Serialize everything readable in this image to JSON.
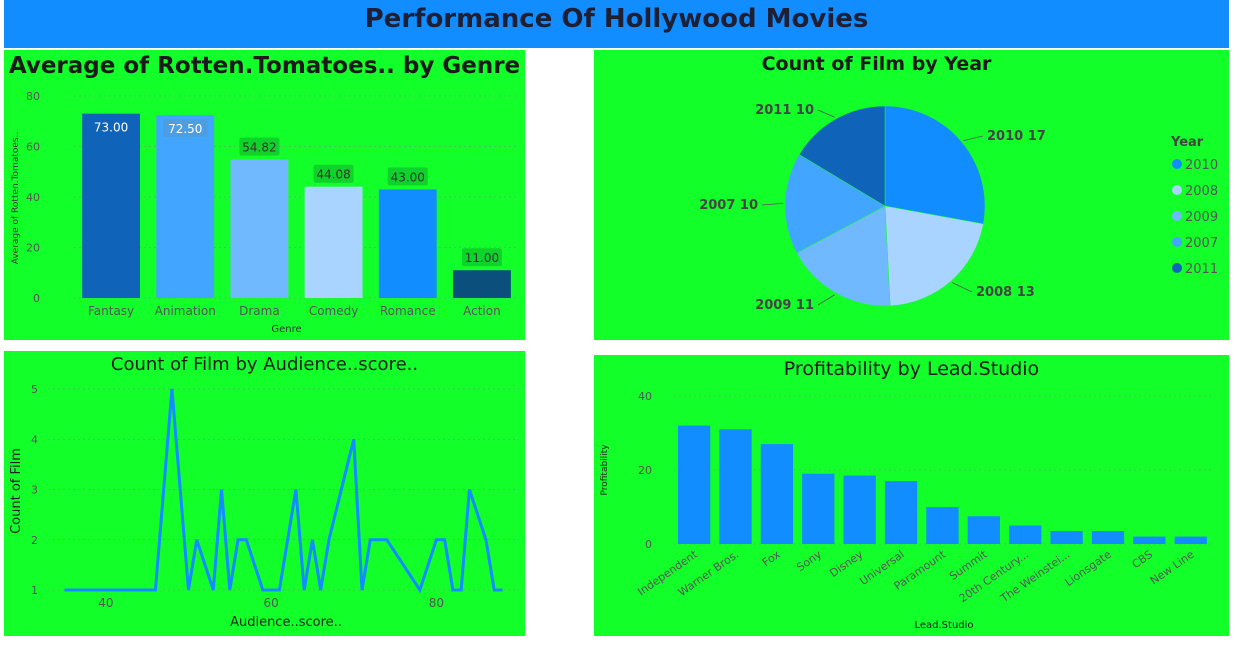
{
  "header": {
    "title": "Performance Of Hollywood Movies"
  },
  "colors": {
    "panel_bg": "#12ff2a",
    "header_bg": "#118dff",
    "bar_default": "#118dff",
    "genre_bars": [
      "#0f63b8",
      "#42a5ff",
      "#70b9ff",
      "#a8d4ff",
      "#118dff",
      "#0b4f7c"
    ],
    "pie_slices": {
      "2010": "#118dff",
      "2008": "#a8d4ff",
      "2009": "#70b9ff",
      "2007": "#42a5ff",
      "2011": "#0f63b8"
    },
    "line": "#118dff"
  },
  "chart_data": [
    {
      "type": "bar",
      "title": "Average of Rotten.Tomatoes.. by Genre",
      "xlabel": "Genre",
      "ylabel": "Average of Rotten.Tomatoes..",
      "categories": [
        "Fantasy",
        "Animation",
        "Drama",
        "Comedy",
        "Romance",
        "Action"
      ],
      "values": [
        73.0,
        72.5,
        54.82,
        44.08,
        43.0,
        11.0
      ],
      "data_labels": [
        "73.00",
        "72.50",
        "54.82",
        "44.08",
        "43.00",
        "11.00"
      ],
      "ylim": [
        0,
        80
      ],
      "yticks": [
        0,
        20,
        40,
        60,
        80
      ],
      "grid": true
    },
    {
      "type": "pie",
      "title": "Count of Film by Year",
      "legend_title": "Year",
      "legend_position": "right",
      "legend": [
        "2010",
        "2008",
        "2009",
        "2007",
        "2011"
      ],
      "slices": [
        {
          "label": "2010",
          "value": 17,
          "text": "2010 17"
        },
        {
          "label": "2008",
          "value": 13,
          "text": "2008 13"
        },
        {
          "label": "2009",
          "value": 11,
          "text": "2009 11"
        },
        {
          "label": "2007",
          "value": 10,
          "text": "2007 10"
        },
        {
          "label": "2011",
          "value": 10,
          "text": "2011 10"
        }
      ]
    },
    {
      "type": "line",
      "title": "Count of Film by Audience..score..",
      "xlabel": "Audience..score..",
      "ylabel": "Count of Film",
      "x": [
        35,
        44,
        46,
        48,
        50,
        51,
        53,
        54,
        55,
        56,
        57,
        59,
        61,
        62,
        63,
        64,
        65,
        66,
        67,
        70,
        71,
        72,
        74,
        78,
        80,
        81,
        82,
        83,
        84,
        86,
        87,
        88
      ],
      "y": [
        1,
        1,
        1,
        5,
        1,
        2,
        1,
        3,
        1,
        2,
        2,
        1,
        1,
        2,
        3,
        1,
        2,
        1,
        2,
        4,
        1,
        2,
        2,
        1,
        2,
        2,
        1,
        1,
        3,
        2,
        1,
        1
      ],
      "xticks": [
        40,
        60,
        80
      ],
      "yticks": [
        1,
        2,
        3,
        4,
        5
      ],
      "xlim": [
        33,
        90
      ],
      "ylim": [
        1,
        5
      ],
      "grid": true
    },
    {
      "type": "bar",
      "title": "Profitability by Lead.Studio",
      "xlabel": "Lead.Studio",
      "ylabel": "Profitability",
      "categories": [
        "Independent",
        "Warner Bros.",
        "Fox",
        "Sony",
        "Disney",
        "Universal",
        "Paramount",
        "Summit",
        "20th Century...",
        "The Weinstei...",
        "Lionsgate",
        "CBS",
        "New Line"
      ],
      "values": [
        32,
        31,
        27,
        19,
        18.5,
        17,
        10,
        7.5,
        5,
        3.5,
        3.5,
        2,
        2
      ],
      "ylim": [
        0,
        40
      ],
      "yticks": [
        0,
        20,
        40
      ],
      "grid": true
    }
  ]
}
